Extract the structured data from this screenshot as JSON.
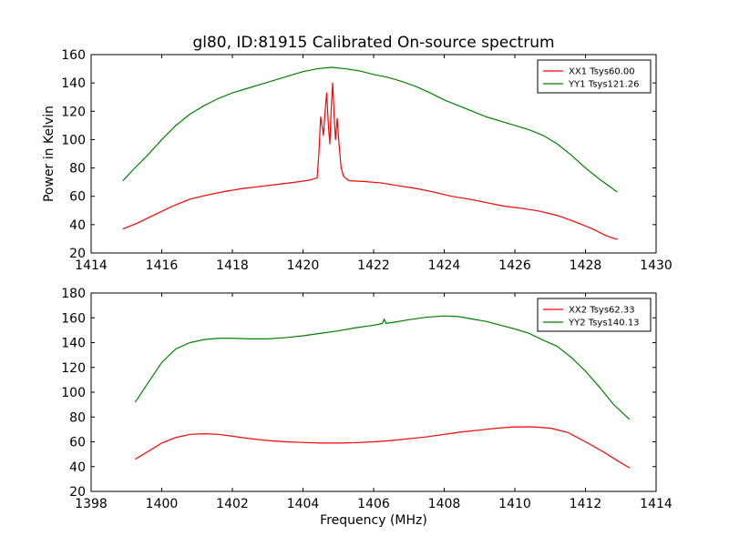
{
  "chart_data": [
    {
      "type": "line",
      "title": "gl80, ID:81915 Calibrated On-source spectrum",
      "xlabel": "",
      "ylabel": "Power in Kelvin",
      "xlim": [
        1414,
        1430
      ],
      "ylim": [
        20,
        160
      ],
      "xticks": [
        1414,
        1416,
        1418,
        1420,
        1422,
        1424,
        1426,
        1428,
        1430
      ],
      "yticks": [
        20,
        40,
        60,
        80,
        100,
        120,
        140,
        160
      ],
      "legend": "top-right",
      "grid": false,
      "series": [
        {
          "name": "XX1 Tsys60.00",
          "color": "#ff0000",
          "points": [
            [
              1414.9,
              37
            ],
            [
              1415.3,
              41
            ],
            [
              1415.8,
              47
            ],
            [
              1416.3,
              53
            ],
            [
              1416.8,
              58
            ],
            [
              1417.3,
              61
            ],
            [
              1417.8,
              63.5
            ],
            [
              1418.3,
              65.5
            ],
            [
              1418.8,
              67
            ],
            [
              1419.3,
              68.5
            ],
            [
              1419.8,
              70
            ],
            [
              1420.2,
              71.5
            ],
            [
              1420.4,
              73
            ],
            [
              1420.45,
              90
            ],
            [
              1420.5,
              116
            ],
            [
              1420.55,
              108
            ],
            [
              1420.58,
              103
            ],
            [
              1420.62,
              118
            ],
            [
              1420.67,
              133
            ],
            [
              1420.72,
              110
            ],
            [
              1420.76,
              97
            ],
            [
              1420.8,
              122
            ],
            [
              1420.84,
              140
            ],
            [
              1420.88,
              118
            ],
            [
              1420.92,
              100
            ],
            [
              1420.97,
              115
            ],
            [
              1421.02,
              97
            ],
            [
              1421.08,
              80
            ],
            [
              1421.15,
              74
            ],
            [
              1421.3,
              71
            ],
            [
              1421.7,
              70.5
            ],
            [
              1422.2,
              69.5
            ],
            [
              1422.7,
              67.5
            ],
            [
              1423.2,
              65.5
            ],
            [
              1423.7,
              63
            ],
            [
              1424.2,
              60
            ],
            [
              1424.7,
              58
            ],
            [
              1425.2,
              55.5
            ],
            [
              1425.7,
              53
            ],
            [
              1426.2,
              51.5
            ],
            [
              1426.7,
              49.5
            ],
            [
              1427.2,
              46.5
            ],
            [
              1427.7,
              42
            ],
            [
              1428.2,
              37
            ],
            [
              1428.6,
              32
            ],
            [
              1428.9,
              29.5
            ]
          ]
        },
        {
          "name": "YY1 Tsys121.26",
          "color": "#008000",
          "points": [
            [
              1414.9,
              71
            ],
            [
              1415.2,
              79
            ],
            [
              1415.6,
              89
            ],
            [
              1416.0,
              100
            ],
            [
              1416.4,
              110
            ],
            [
              1416.8,
              118
            ],
            [
              1417.2,
              124
            ],
            [
              1417.6,
              129
            ],
            [
              1418.0,
              133
            ],
            [
              1418.4,
              136
            ],
            [
              1418.8,
              139
            ],
            [
              1419.2,
              142
            ],
            [
              1419.6,
              145
            ],
            [
              1420.0,
              148
            ],
            [
              1420.4,
              150
            ],
            [
              1420.8,
              151
            ],
            [
              1421.2,
              150
            ],
            [
              1421.6,
              148.5
            ],
            [
              1422.0,
              146
            ],
            [
              1422.4,
              144
            ],
            [
              1422.8,
              141
            ],
            [
              1423.2,
              137.5
            ],
            [
              1423.6,
              133
            ],
            [
              1424.0,
              128
            ],
            [
              1424.4,
              124
            ],
            [
              1424.8,
              120
            ],
            [
              1425.2,
              116
            ],
            [
              1425.6,
              113
            ],
            [
              1426.0,
              110
            ],
            [
              1426.4,
              107
            ],
            [
              1426.8,
              103
            ],
            [
              1427.2,
              97
            ],
            [
              1427.6,
              89
            ],
            [
              1428.0,
              80
            ],
            [
              1428.4,
              72
            ],
            [
              1428.9,
              63
            ]
          ]
        }
      ]
    },
    {
      "type": "line",
      "title": "",
      "xlabel": "Frequency (MHz)",
      "ylabel": "",
      "xlim": [
        1398,
        1414
      ],
      "ylim": [
        20,
        180
      ],
      "xticks": [
        1398,
        1400,
        1402,
        1404,
        1406,
        1408,
        1410,
        1412,
        1414
      ],
      "yticks": [
        20,
        40,
        60,
        80,
        100,
        120,
        140,
        160,
        180
      ],
      "legend": "top-right",
      "grid": false,
      "series": [
        {
          "name": "XX2 Tsys62.33",
          "color": "#ff0000",
          "points": [
            [
              1399.25,
              46
            ],
            [
              1399.6,
              52
            ],
            [
              1400.0,
              59
            ],
            [
              1400.4,
              63.5
            ],
            [
              1400.8,
              66
            ],
            [
              1401.2,
              66.5
            ],
            [
              1401.6,
              66
            ],
            [
              1402.0,
              64.5
            ],
            [
              1402.5,
              62.5
            ],
            [
              1403.0,
              61
            ],
            [
              1403.5,
              60
            ],
            [
              1404.0,
              59.5
            ],
            [
              1404.5,
              59
            ],
            [
              1405.0,
              59
            ],
            [
              1405.5,
              59.3
            ],
            [
              1406.0,
              60
            ],
            [
              1406.5,
              61
            ],
            [
              1407.0,
              62.5
            ],
            [
              1407.5,
              64
            ],
            [
              1408.0,
              66
            ],
            [
              1408.5,
              68
            ],
            [
              1409.0,
              69.5
            ],
            [
              1409.5,
              71
            ],
            [
              1410.0,
              72
            ],
            [
              1410.5,
              72
            ],
            [
              1411.0,
              71
            ],
            [
              1411.5,
              67.5
            ],
            [
              1412.0,
              60
            ],
            [
              1412.5,
              52
            ],
            [
              1413.0,
              43
            ],
            [
              1413.25,
              39
            ]
          ]
        },
        {
          "name": "YY2 Tsys140.13",
          "color": "#008000",
          "points": [
            [
              1399.25,
              92
            ],
            [
              1399.6,
              107
            ],
            [
              1400.0,
              124
            ],
            [
              1400.4,
              135
            ],
            [
              1400.8,
              140
            ],
            [
              1401.2,
              142.5
            ],
            [
              1401.6,
              143.5
            ],
            [
              1402.0,
              143.5
            ],
            [
              1402.5,
              143
            ],
            [
              1403.0,
              143
            ],
            [
              1403.5,
              144
            ],
            [
              1404.0,
              145.5
            ],
            [
              1404.5,
              147.5
            ],
            [
              1405.0,
              149.5
            ],
            [
              1405.5,
              152
            ],
            [
              1406.0,
              154
            ],
            [
              1406.25,
              155.5
            ],
            [
              1406.3,
              159
            ],
            [
              1406.35,
              155.5
            ],
            [
              1406.6,
              156.5
            ],
            [
              1407.0,
              158.5
            ],
            [
              1407.5,
              160.5
            ],
            [
              1408.0,
              161.5
            ],
            [
              1408.4,
              161
            ],
            [
              1408.8,
              159
            ],
            [
              1409.2,
              157
            ],
            [
              1409.6,
              154
            ],
            [
              1410.0,
              151
            ],
            [
              1410.4,
              147.5
            ],
            [
              1410.8,
              142
            ],
            [
              1411.2,
              137
            ],
            [
              1411.6,
              128
            ],
            [
              1412.0,
              117
            ],
            [
              1412.4,
              104
            ],
            [
              1412.8,
              90
            ],
            [
              1413.25,
              78
            ]
          ]
        }
      ]
    }
  ]
}
